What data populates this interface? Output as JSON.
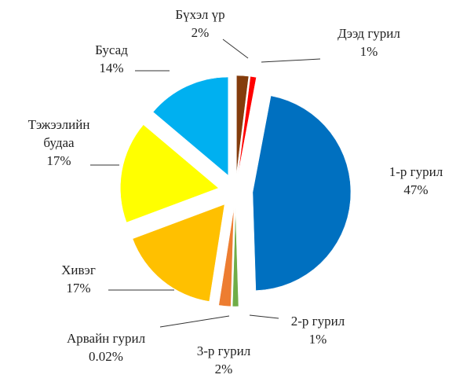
{
  "chart_data": {
    "type": "pie",
    "categories": [
      "Бүхэл үр",
      "Дээд гурил",
      "1-р гурил",
      "2-р гурил",
      "3-р гурил",
      "Арвайн гурил",
      "Хивэг",
      "Тэжээлийн будаа",
      "Бусад"
    ],
    "values": [
      2,
      1,
      47,
      1,
      2,
      0.02,
      17,
      17,
      14
    ],
    "value_labels": [
      "2%",
      "1%",
      "47%",
      "1%",
      "2%",
      "0.02%",
      "17%",
      "17%",
      "14%"
    ],
    "colors": [
      "#843c0c",
      "#ff0000",
      "#0070c0",
      "#70ad47",
      "#ed7d31",
      "#a5a5a5",
      "#ffc000",
      "#ffff00",
      "#00b0f0"
    ]
  }
}
